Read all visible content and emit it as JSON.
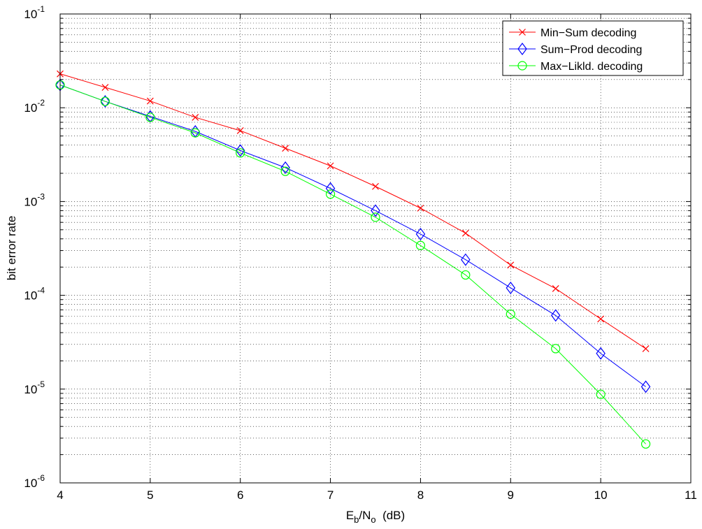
{
  "chart_data": {
    "type": "line",
    "title": "",
    "xlabel": {
      "base": "E",
      "sub1": "b",
      "mid": "/N",
      "sub2": "o",
      "unit": "  (dB)"
    },
    "ylabel": "bit error rate",
    "xlim": [
      4,
      11
    ],
    "ylim": [
      1e-06,
      0.1
    ],
    "yscale": "log",
    "grid": true,
    "legend_position": "top-right",
    "x_ticks": [
      "4",
      "5",
      "6",
      "7",
      "8",
      "9",
      "10",
      "11"
    ],
    "y_ticks": [
      {
        "base": "10",
        "exp": "-6"
      },
      {
        "base": "10",
        "exp": "-5"
      },
      {
        "base": "10",
        "exp": "-4"
      },
      {
        "base": "10",
        "exp": "-3"
      },
      {
        "base": "10",
        "exp": "-2"
      },
      {
        "base": "10",
        "exp": "-1"
      }
    ],
    "x": [
      4,
      4.5,
      5,
      5.5,
      6,
      6.5,
      7,
      7.5,
      8,
      8.5,
      9,
      9.5,
      10,
      10.5
    ],
    "series": [
      {
        "name": "Min−Sum decoding",
        "color": "#ff0000",
        "marker": "x",
        "values": [
          0.023,
          0.0165,
          0.0118,
          0.0079,
          0.0057,
          0.0037,
          0.0024,
          0.00145,
          0.00085,
          0.00046,
          0.00021,
          0.000118,
          5.6e-05,
          2.7e-05
        ]
      },
      {
        "name": "Sum−Prod decoding",
        "color": "#0000ff",
        "marker": "diamond",
        "values": [
          0.0175,
          0.0117,
          0.0081,
          0.0056,
          0.0035,
          0.0023,
          0.00138,
          0.0008,
          0.00045,
          0.00024,
          0.00012,
          6.1e-05,
          2.4e-05,
          1.06e-05
        ]
      },
      {
        "name": "Max−Likld. decoding",
        "color": "#00ff00",
        "marker": "circle",
        "values": [
          0.0175,
          0.0117,
          0.0079,
          0.0054,
          0.0033,
          0.0021,
          0.0012,
          0.00068,
          0.00034,
          0.000165,
          6.3e-05,
          2.7e-05,
          8.8e-06,
          2.6e-06
        ]
      }
    ]
  }
}
